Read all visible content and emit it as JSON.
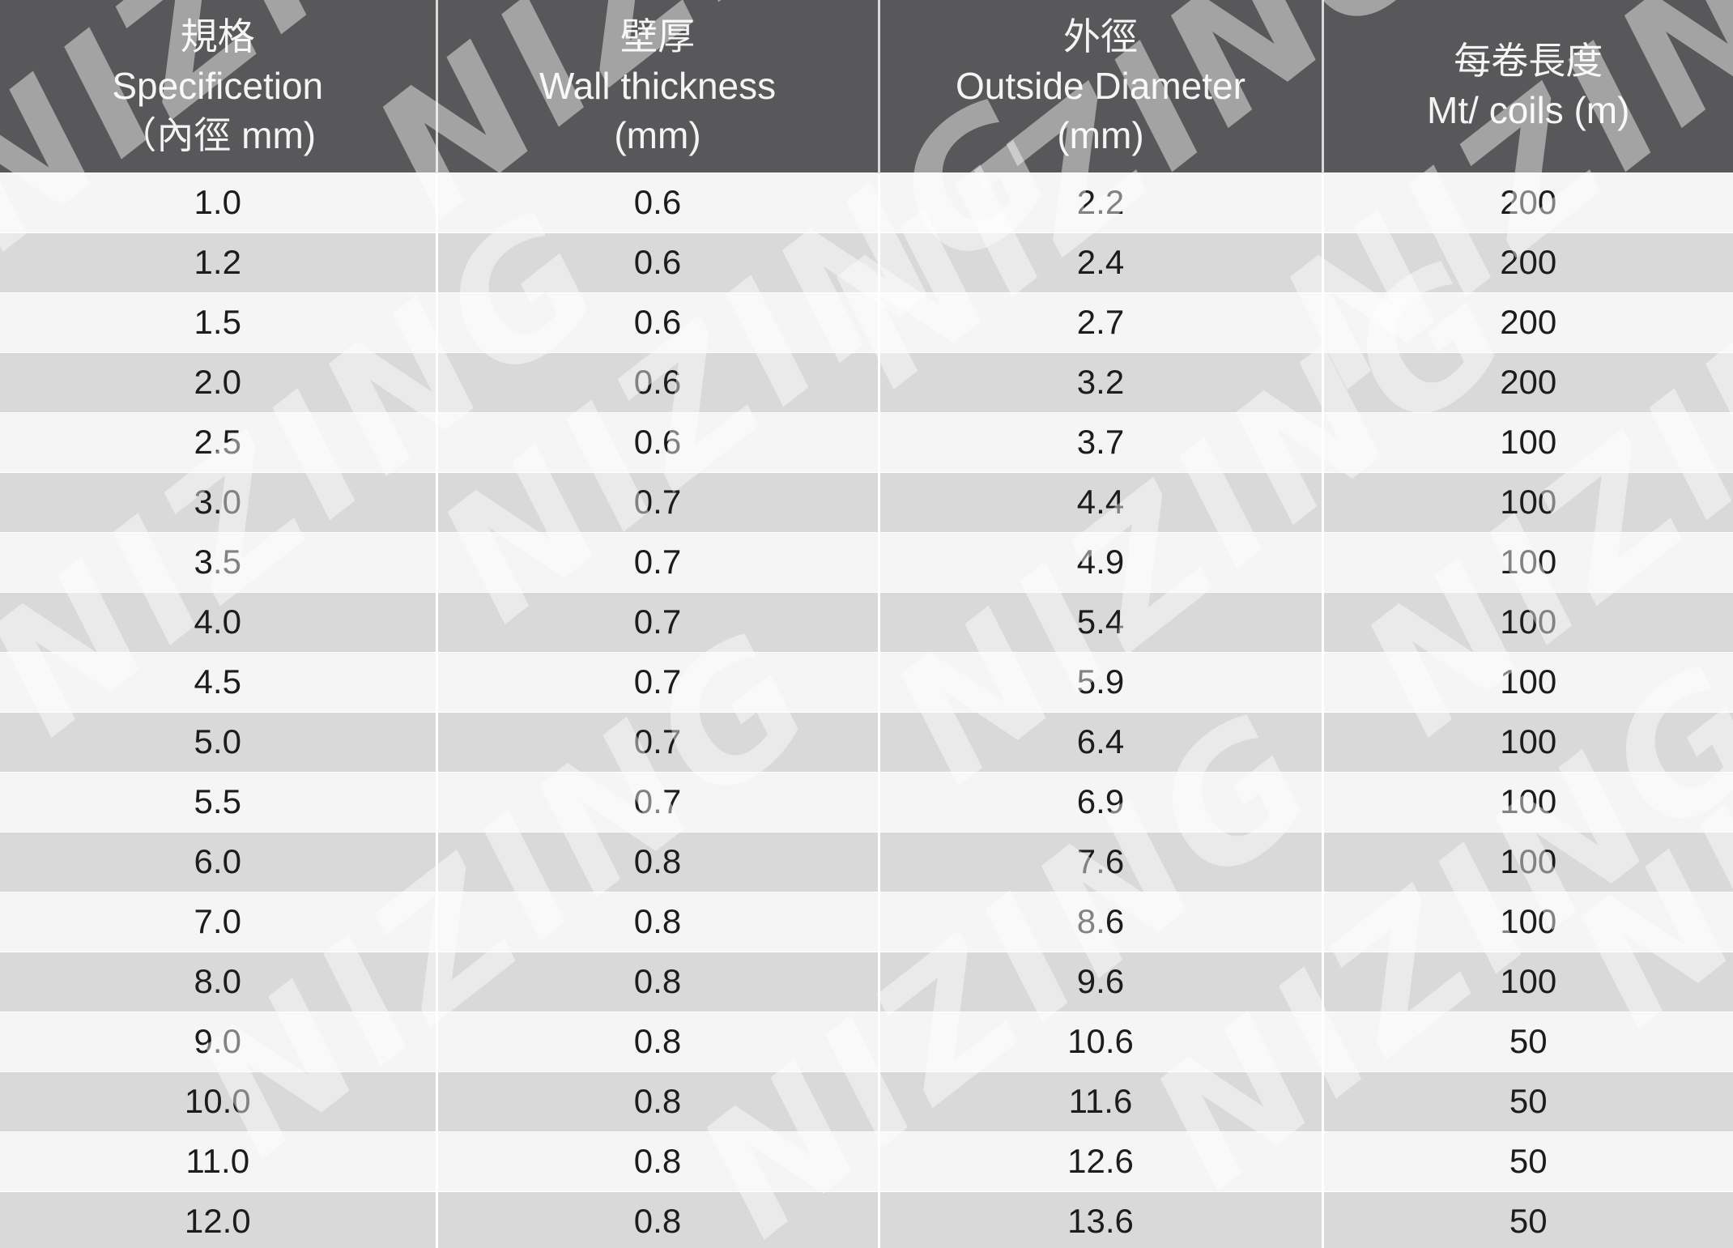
{
  "table": {
    "headers": [
      {
        "lines": [
          "規格",
          "Specificetion",
          "（內徑 mm)"
        ]
      },
      {
        "lines": [
          "壁厚",
          "Wall thickness",
          "(mm)"
        ]
      },
      {
        "lines": [
          "外徑",
          "Outside Diameter",
          "(mm)"
        ]
      },
      {
        "lines": [
          "每卷長度",
          "Mt/ coils (m)"
        ]
      }
    ],
    "rows": [
      [
        "1.0",
        "0.6",
        "2.2",
        "200"
      ],
      [
        "1.2",
        "0.6",
        "2.4",
        "200"
      ],
      [
        "1.5",
        "0.6",
        "2.7",
        "200"
      ],
      [
        "2.0",
        "0.6",
        "3.2",
        "200"
      ],
      [
        "2.5",
        "0.6",
        "3.7",
        "100"
      ],
      [
        "3.0",
        "0.7",
        "4.4",
        "100"
      ],
      [
        "3.5",
        "0.7",
        "4.9",
        "100"
      ],
      [
        "4.0",
        "0.7",
        "5.4",
        "100"
      ],
      [
        "4.5",
        "0.7",
        "5.9",
        "100"
      ],
      [
        "5.0",
        "0.7",
        "6.4",
        "100"
      ],
      [
        "5.5",
        "0.7",
        "6.9",
        "100"
      ],
      [
        "6.0",
        "0.8",
        "7.6",
        "100"
      ],
      [
        "7.0",
        "0.8",
        "8.6",
        "100"
      ],
      [
        "8.0",
        "0.8",
        "9.6",
        "100"
      ],
      [
        "9.0",
        "0.8",
        "10.6",
        "50"
      ],
      [
        "10.0",
        "0.8",
        "11.6",
        "50"
      ],
      [
        "11.0",
        "0.8",
        "12.6",
        "50"
      ],
      [
        "12.0",
        "0.8",
        "13.6",
        "50"
      ]
    ]
  },
  "watermark": {
    "text": "NIZING"
  },
  "colors": {
    "header_bg": "#58585a",
    "header_text": "#f4f4f4",
    "row_light": "#f5f5f5",
    "row_dark": "#d9d9d9",
    "cell_text": "#1c1c1c"
  }
}
